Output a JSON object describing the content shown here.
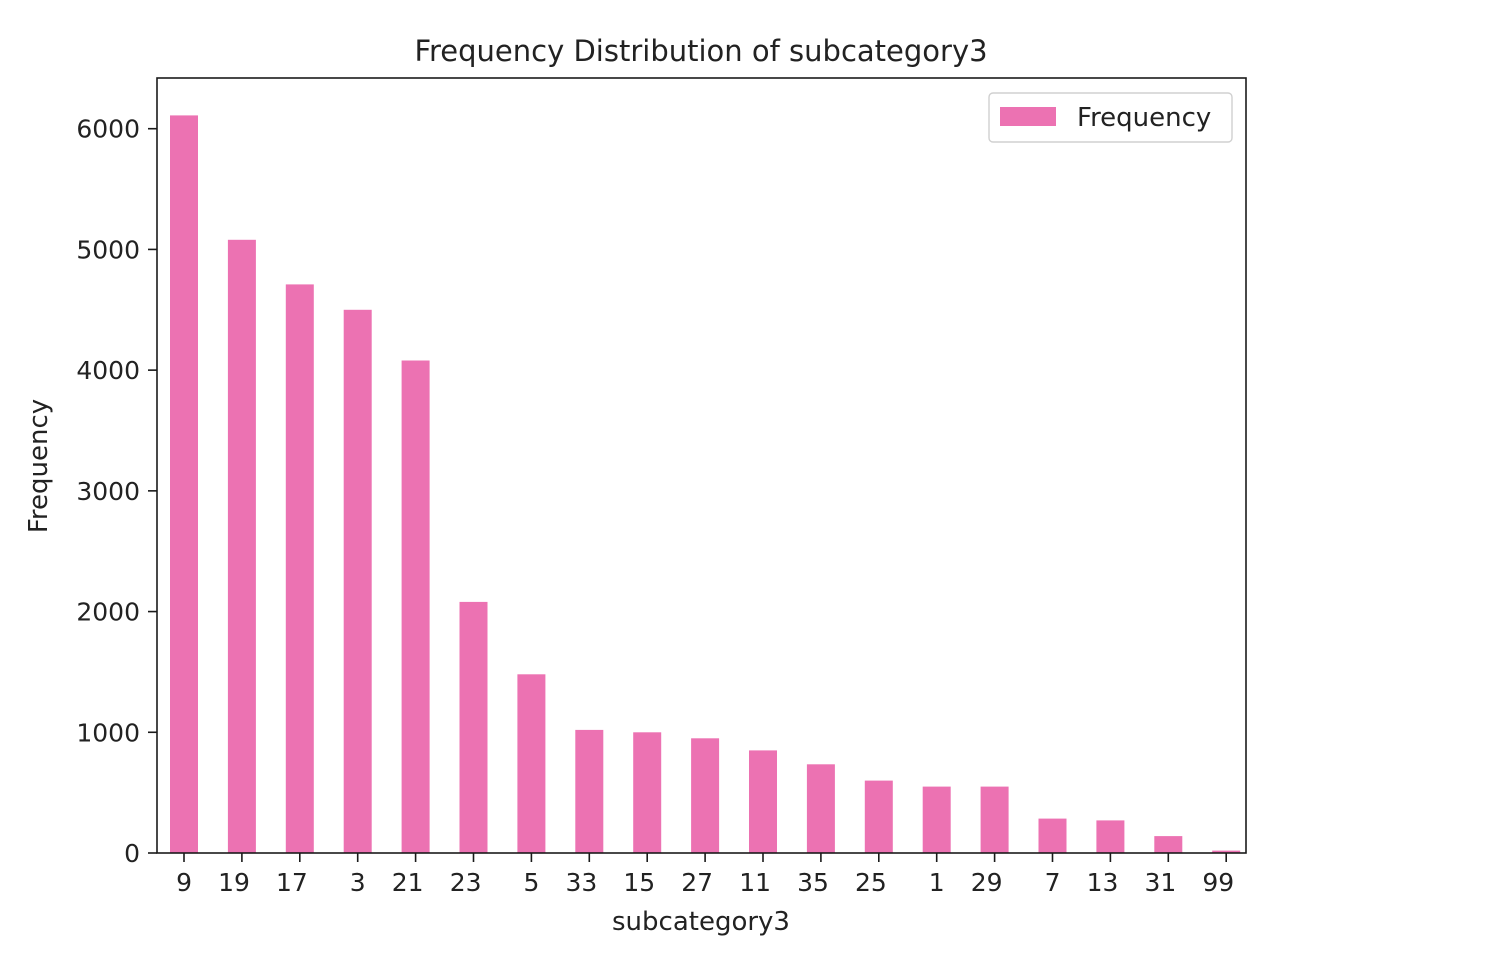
{
  "chart_data": {
    "type": "bar",
    "title": "Frequency Distribution of subcategory3",
    "xlabel": "subcategory3",
    "ylabel": "Frequency",
    "categories": [
      "9",
      "19",
      "17",
      "3",
      "21",
      "23",
      "5",
      "33",
      "15",
      "27",
      "11",
      "35",
      "25",
      "1",
      "29",
      "7",
      "13",
      "31",
      "99"
    ],
    "series": [
      {
        "name": "Frequency",
        "color": "#ec72b2",
        "values": [
          6110,
          5080,
          4710,
          4500,
          4080,
          2080,
          1480,
          1020,
          1000,
          950,
          850,
          735,
          600,
          550,
          550,
          285,
          270,
          140,
          20
        ]
      }
    ],
    "ylim": [
      0,
      6420
    ],
    "yticks": [
      0,
      1000,
      2000,
      3000,
      4000,
      5000,
      6000
    ],
    "yticklabels": [
      "0",
      "1000",
      "2000",
      "3000",
      "4000",
      "5000",
      "6000"
    ],
    "grid": false,
    "legend": "top-right"
  }
}
